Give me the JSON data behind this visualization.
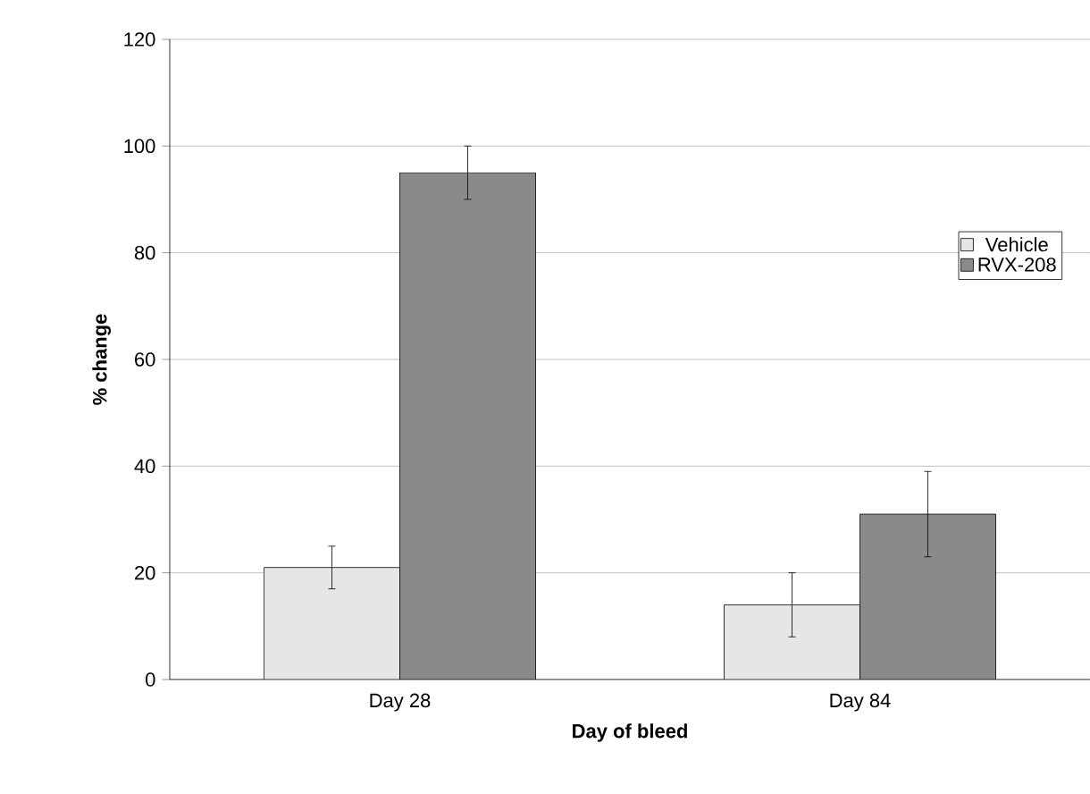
{
  "chart_data": {
    "type": "bar",
    "xlabel": "Day of bleed",
    "ylabel": "% change",
    "categories": [
      "Day 28",
      "Day 84"
    ],
    "series": [
      {
        "name": "Vehicle",
        "color": "#e6e6e6",
        "values": [
          21,
          14
        ],
        "errors": [
          4,
          6
        ]
      },
      {
        "name": "RVX-208",
        "color": "#8a8a8a",
        "values": [
          95,
          31
        ],
        "errors": [
          5,
          8
        ]
      }
    ],
    "ylim": [
      0,
      120
    ],
    "yticks": [
      0,
      20,
      40,
      60,
      80,
      100,
      120
    ],
    "grid": "y",
    "legend": "right"
  }
}
